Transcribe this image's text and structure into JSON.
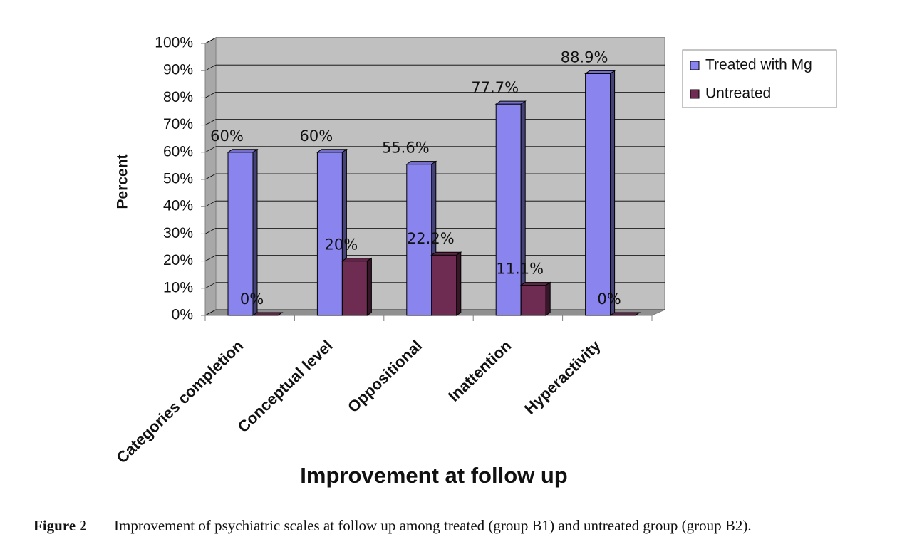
{
  "chart_data": {
    "type": "bar3d",
    "x_label": "Improvement at follow up",
    "y_label": "Percent",
    "categories": [
      "Categories completion",
      "Conceptual level",
      "Oppositional",
      "Inattention",
      "Hyperactivity"
    ],
    "series": [
      {
        "name": "Treated with Mg",
        "color": "#8a84ee",
        "values": [
          60,
          60,
          55.6,
          77.7,
          88.9
        ],
        "value_labels": [
          "60%",
          "60%",
          "55.6%",
          "77.7%",
          "88.9%"
        ]
      },
      {
        "name": "Untreated",
        "color": "#6e2c52",
        "values": [
          0,
          20,
          22.2,
          11.1,
          0
        ],
        "value_labels": [
          "0%",
          "20%",
          "22.2%",
          "11.1%",
          "0%"
        ]
      }
    ],
    "ylim": [
      0,
      100
    ],
    "yticks": [
      {
        "value": 0,
        "label": "0%"
      },
      {
        "value": 10,
        "label": "10%"
      },
      {
        "value": 20,
        "label": "20%"
      },
      {
        "value": 30,
        "label": "30%"
      },
      {
        "value": 40,
        "label": "40%"
      },
      {
        "value": 50,
        "label": "50%"
      },
      {
        "value": 60,
        "label": "60%"
      },
      {
        "value": 70,
        "label": "70%"
      },
      {
        "value": 80,
        "label": "80%"
      },
      {
        "value": 90,
        "label": "90%"
      },
      {
        "value": 100,
        "label": "100%"
      }
    ],
    "grid": true,
    "legend": "top-right"
  },
  "caption": {
    "label": "Figure 2",
    "text": "Improvement of psychiatric scales at follow up among treated (group B1) and untreated group (group B2)."
  }
}
